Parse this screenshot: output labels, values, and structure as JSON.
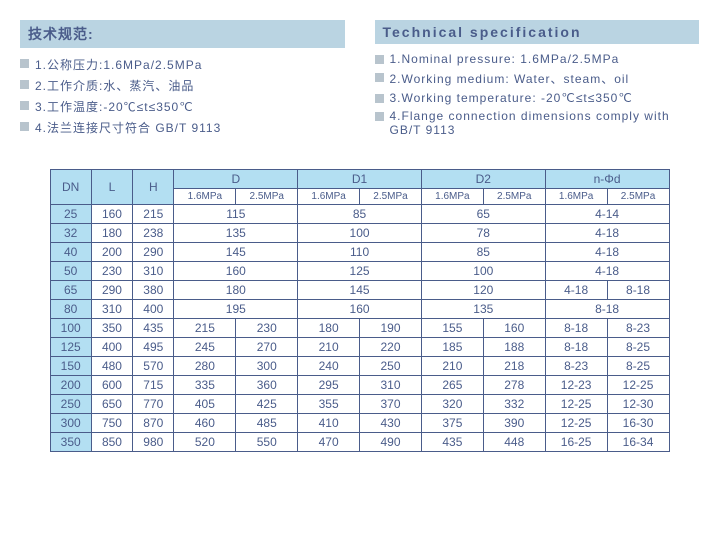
{
  "spec_cn": {
    "title": "技术规范:",
    "items": [
      "1.公称压力:1.6MPa/2.5MPa",
      "2.工作介质:水、蒸汽、油品",
      "3.工作温度:-20℃≤t≤350℃",
      "4.法兰连接尺寸符合 GB/T 9113"
    ]
  },
  "spec_en": {
    "title": "Technical specification",
    "items": [
      "1.Nominal pressure: 1.6MPa/2.5MPa",
      "2.Working medium: Water、steam、oil",
      "3.Working temperature: -20℃≤t≤350℃",
      "4.Flange connection dimensions comply with GB/T 9113"
    ]
  },
  "table": {
    "headers_top": [
      "DN",
      "L",
      "H",
      "D",
      "D1",
      "D2",
      "n-Φd"
    ],
    "headers_sub": [
      "1.6MPa",
      "2.5MPa",
      "1.6MPa",
      "2.5MPa",
      "1.6MPa",
      "2.5MPa",
      "1.6MPa",
      "2.5MPa"
    ],
    "rows": [
      {
        "dn": "25",
        "l": "160",
        "h": "215",
        "d": [
          "115"
        ],
        "d1": [
          "85"
        ],
        "d2": [
          "65"
        ],
        "nd": [
          "4-14"
        ]
      },
      {
        "dn": "32",
        "l": "180",
        "h": "238",
        "d": [
          "135"
        ],
        "d1": [
          "100"
        ],
        "d2": [
          "78"
        ],
        "nd": [
          "4-18"
        ]
      },
      {
        "dn": "40",
        "l": "200",
        "h": "290",
        "d": [
          "145"
        ],
        "d1": [
          "110"
        ],
        "d2": [
          "85"
        ],
        "nd": [
          "4-18"
        ]
      },
      {
        "dn": "50",
        "l": "230",
        "h": "310",
        "d": [
          "160"
        ],
        "d1": [
          "125"
        ],
        "d2": [
          "100"
        ],
        "nd": [
          "4-18"
        ]
      },
      {
        "dn": "65",
        "l": "290",
        "h": "380",
        "d": [
          "180"
        ],
        "d1": [
          "145"
        ],
        "d2": [
          "120"
        ],
        "nd": [
          "4-18",
          "8-18"
        ]
      },
      {
        "dn": "80",
        "l": "310",
        "h": "400",
        "d": [
          "195"
        ],
        "d1": [
          "160"
        ],
        "d2": [
          "135"
        ],
        "nd": [
          "8-18"
        ]
      },
      {
        "dn": "100",
        "l": "350",
        "h": "435",
        "d": [
          "215",
          "230"
        ],
        "d1": [
          "180",
          "190"
        ],
        "d2": [
          "155",
          "160"
        ],
        "nd": [
          "8-18",
          "8-23"
        ]
      },
      {
        "dn": "125",
        "l": "400",
        "h": "495",
        "d": [
          "245",
          "270"
        ],
        "d1": [
          "210",
          "220"
        ],
        "d2": [
          "185",
          "188"
        ],
        "nd": [
          "8-18",
          "8-25"
        ]
      },
      {
        "dn": "150",
        "l": "480",
        "h": "570",
        "d": [
          "280",
          "300"
        ],
        "d1": [
          "240",
          "250"
        ],
        "d2": [
          "210",
          "218"
        ],
        "nd": [
          "8-23",
          "8-25"
        ]
      },
      {
        "dn": "200",
        "l": "600",
        "h": "715",
        "d": [
          "335",
          "360"
        ],
        "d1": [
          "295",
          "310"
        ],
        "d2": [
          "265",
          "278"
        ],
        "nd": [
          "12-23",
          "12-25"
        ]
      },
      {
        "dn": "250",
        "l": "650",
        "h": "770",
        "d": [
          "405",
          "425"
        ],
        "d1": [
          "355",
          "370"
        ],
        "d2": [
          "320",
          "332"
        ],
        "nd": [
          "12-25",
          "12-30"
        ]
      },
      {
        "dn": "300",
        "l": "750",
        "h": "870",
        "d": [
          "460",
          "485"
        ],
        "d1": [
          "410",
          "430"
        ],
        "d2": [
          "375",
          "390"
        ],
        "nd": [
          "12-25",
          "16-30"
        ]
      },
      {
        "dn": "350",
        "l": "850",
        "h": "980",
        "d": [
          "520",
          "550"
        ],
        "d1": [
          "470",
          "490"
        ],
        "d2": [
          "435",
          "448"
        ],
        "nd": [
          "16-25",
          "16-34"
        ]
      }
    ]
  }
}
